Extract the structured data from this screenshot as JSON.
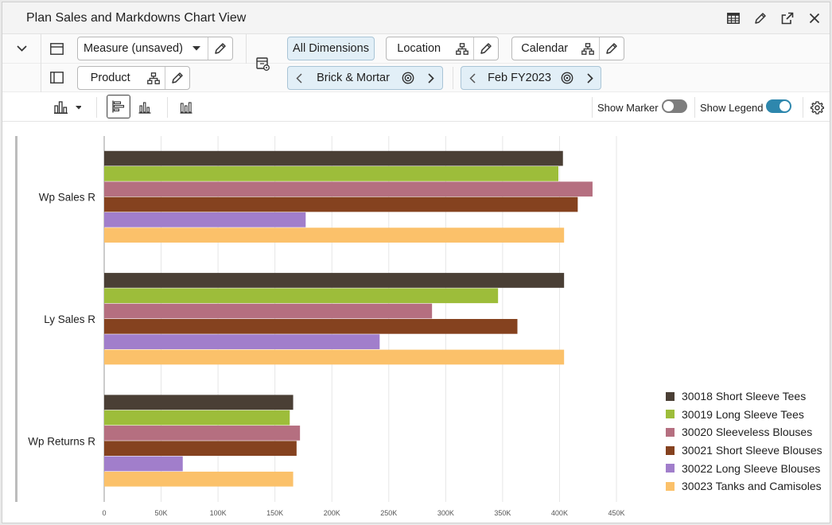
{
  "window": {
    "title": "Plan Sales and Markdowns Chart View"
  },
  "titlebar_icons": [
    "table-view-icon",
    "edit-pencil-icon",
    "expand-icon",
    "close-icon"
  ],
  "toolbar": {
    "measure_label": "Measure (unsaved)",
    "product_label": "Product",
    "all_dimensions_label": "All Dimensions",
    "location_label": "Location",
    "calendar_label": "Calendar",
    "location_value": "Brick & Mortar",
    "calendar_value": "Feb FY2023",
    "show_marker_label": "Show Marker",
    "show_legend_label": "Show Legend",
    "show_marker_on": false,
    "show_legend_on": true,
    "accent_color": "#2e87ad"
  },
  "chart_data": {
    "type": "bar",
    "orientation": "horizontal",
    "categories": [
      "Wp Sales R",
      "Ly Sales R",
      "Wp Returns R"
    ],
    "series": [
      {
        "name": "30018 Short Sleeve Tees",
        "color": "#4a3f35",
        "values": [
          403000,
          404000,
          166000
        ]
      },
      {
        "name": "30019 Long Sleeve Tees",
        "color": "#9dbd3a",
        "values": [
          399000,
          346000,
          163000
        ]
      },
      {
        "name": "30020 Sleeveless Blouses",
        "color": "#b56f80",
        "values": [
          429000,
          288000,
          172000
        ]
      },
      {
        "name": "30021 Short Sleeve Blouses",
        "color": "#85421f",
        "values": [
          416000,
          363000,
          169000
        ]
      },
      {
        "name": "30022 Long Sleeve Blouses",
        "color": "#a17ecb",
        "values": [
          177000,
          242000,
          69000
        ]
      },
      {
        "name": "30023 Tanks and Camisoles",
        "color": "#fbc16a",
        "values": [
          404000,
          404000,
          166000
        ]
      }
    ],
    "xlim": [
      0,
      450000
    ],
    "x_ticks": [
      0,
      50000,
      100000,
      150000,
      200000,
      250000,
      300000,
      350000,
      400000,
      450000
    ],
    "x_tick_labels": [
      "0",
      "50K",
      "100K",
      "150K",
      "200K",
      "250K",
      "300K",
      "350K",
      "400K",
      "450K"
    ],
    "grid": true,
    "legend_position": "right"
  }
}
